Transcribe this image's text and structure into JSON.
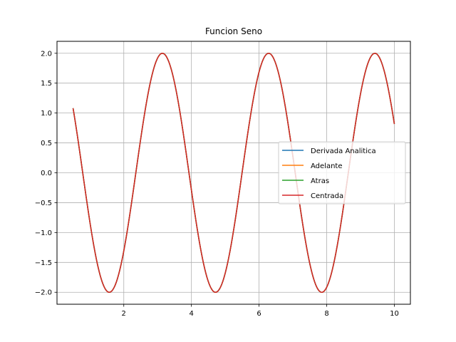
{
  "chart_data": {
    "type": "line",
    "title": "Funcion Seno",
    "xlabel": "",
    "ylabel": "",
    "xlim": [
      0.025,
      10.475
    ],
    "ylim": [
      -2.2,
      2.2
    ],
    "x_ticks": [
      2,
      4,
      6,
      8,
      10
    ],
    "x_tick_labels": [
      "2",
      "4",
      "6",
      "8",
      "10"
    ],
    "y_ticks": [
      2.0,
      1.5,
      1.0,
      0.5,
      0.0,
      -0.5,
      -1.0,
      -1.5,
      -2.0
    ],
    "y_tick_labels": [
      "2.0",
      "1.5",
      "1.0",
      "0.5",
      "0.0",
      "−0.5",
      "−1.0",
      "−1.5",
      "−2.0"
    ],
    "grid": true,
    "legend_position": "center-right",
    "x_range": [
      0.5,
      10.0
    ],
    "function": "2*cos(2x)",
    "series": [
      {
        "name": "Derivada Analitica",
        "color": "#1f77b4"
      },
      {
        "name": "Adelante",
        "color": "#ff7f0e"
      },
      {
        "name": "Atras",
        "color": "#2ca02c"
      },
      {
        "name": "Centrada",
        "color": "#d62728"
      }
    ]
  }
}
